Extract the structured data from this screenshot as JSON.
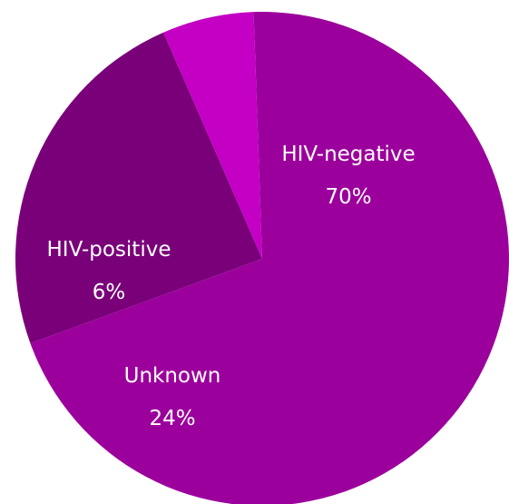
{
  "chart_data": {
    "type": "pie",
    "slices": [
      {
        "label": "HIV-negative",
        "value": 70,
        "value_label": "70%",
        "color": "#9c009c"
      },
      {
        "label": "Unknown",
        "value": 24,
        "value_label": "24%",
        "color": "#7a007a"
      },
      {
        "label": "HIV-positive",
        "value": 6,
        "value_label": "6%",
        "color": "#c300c3"
      }
    ],
    "start_angle_deg": -2
  }
}
